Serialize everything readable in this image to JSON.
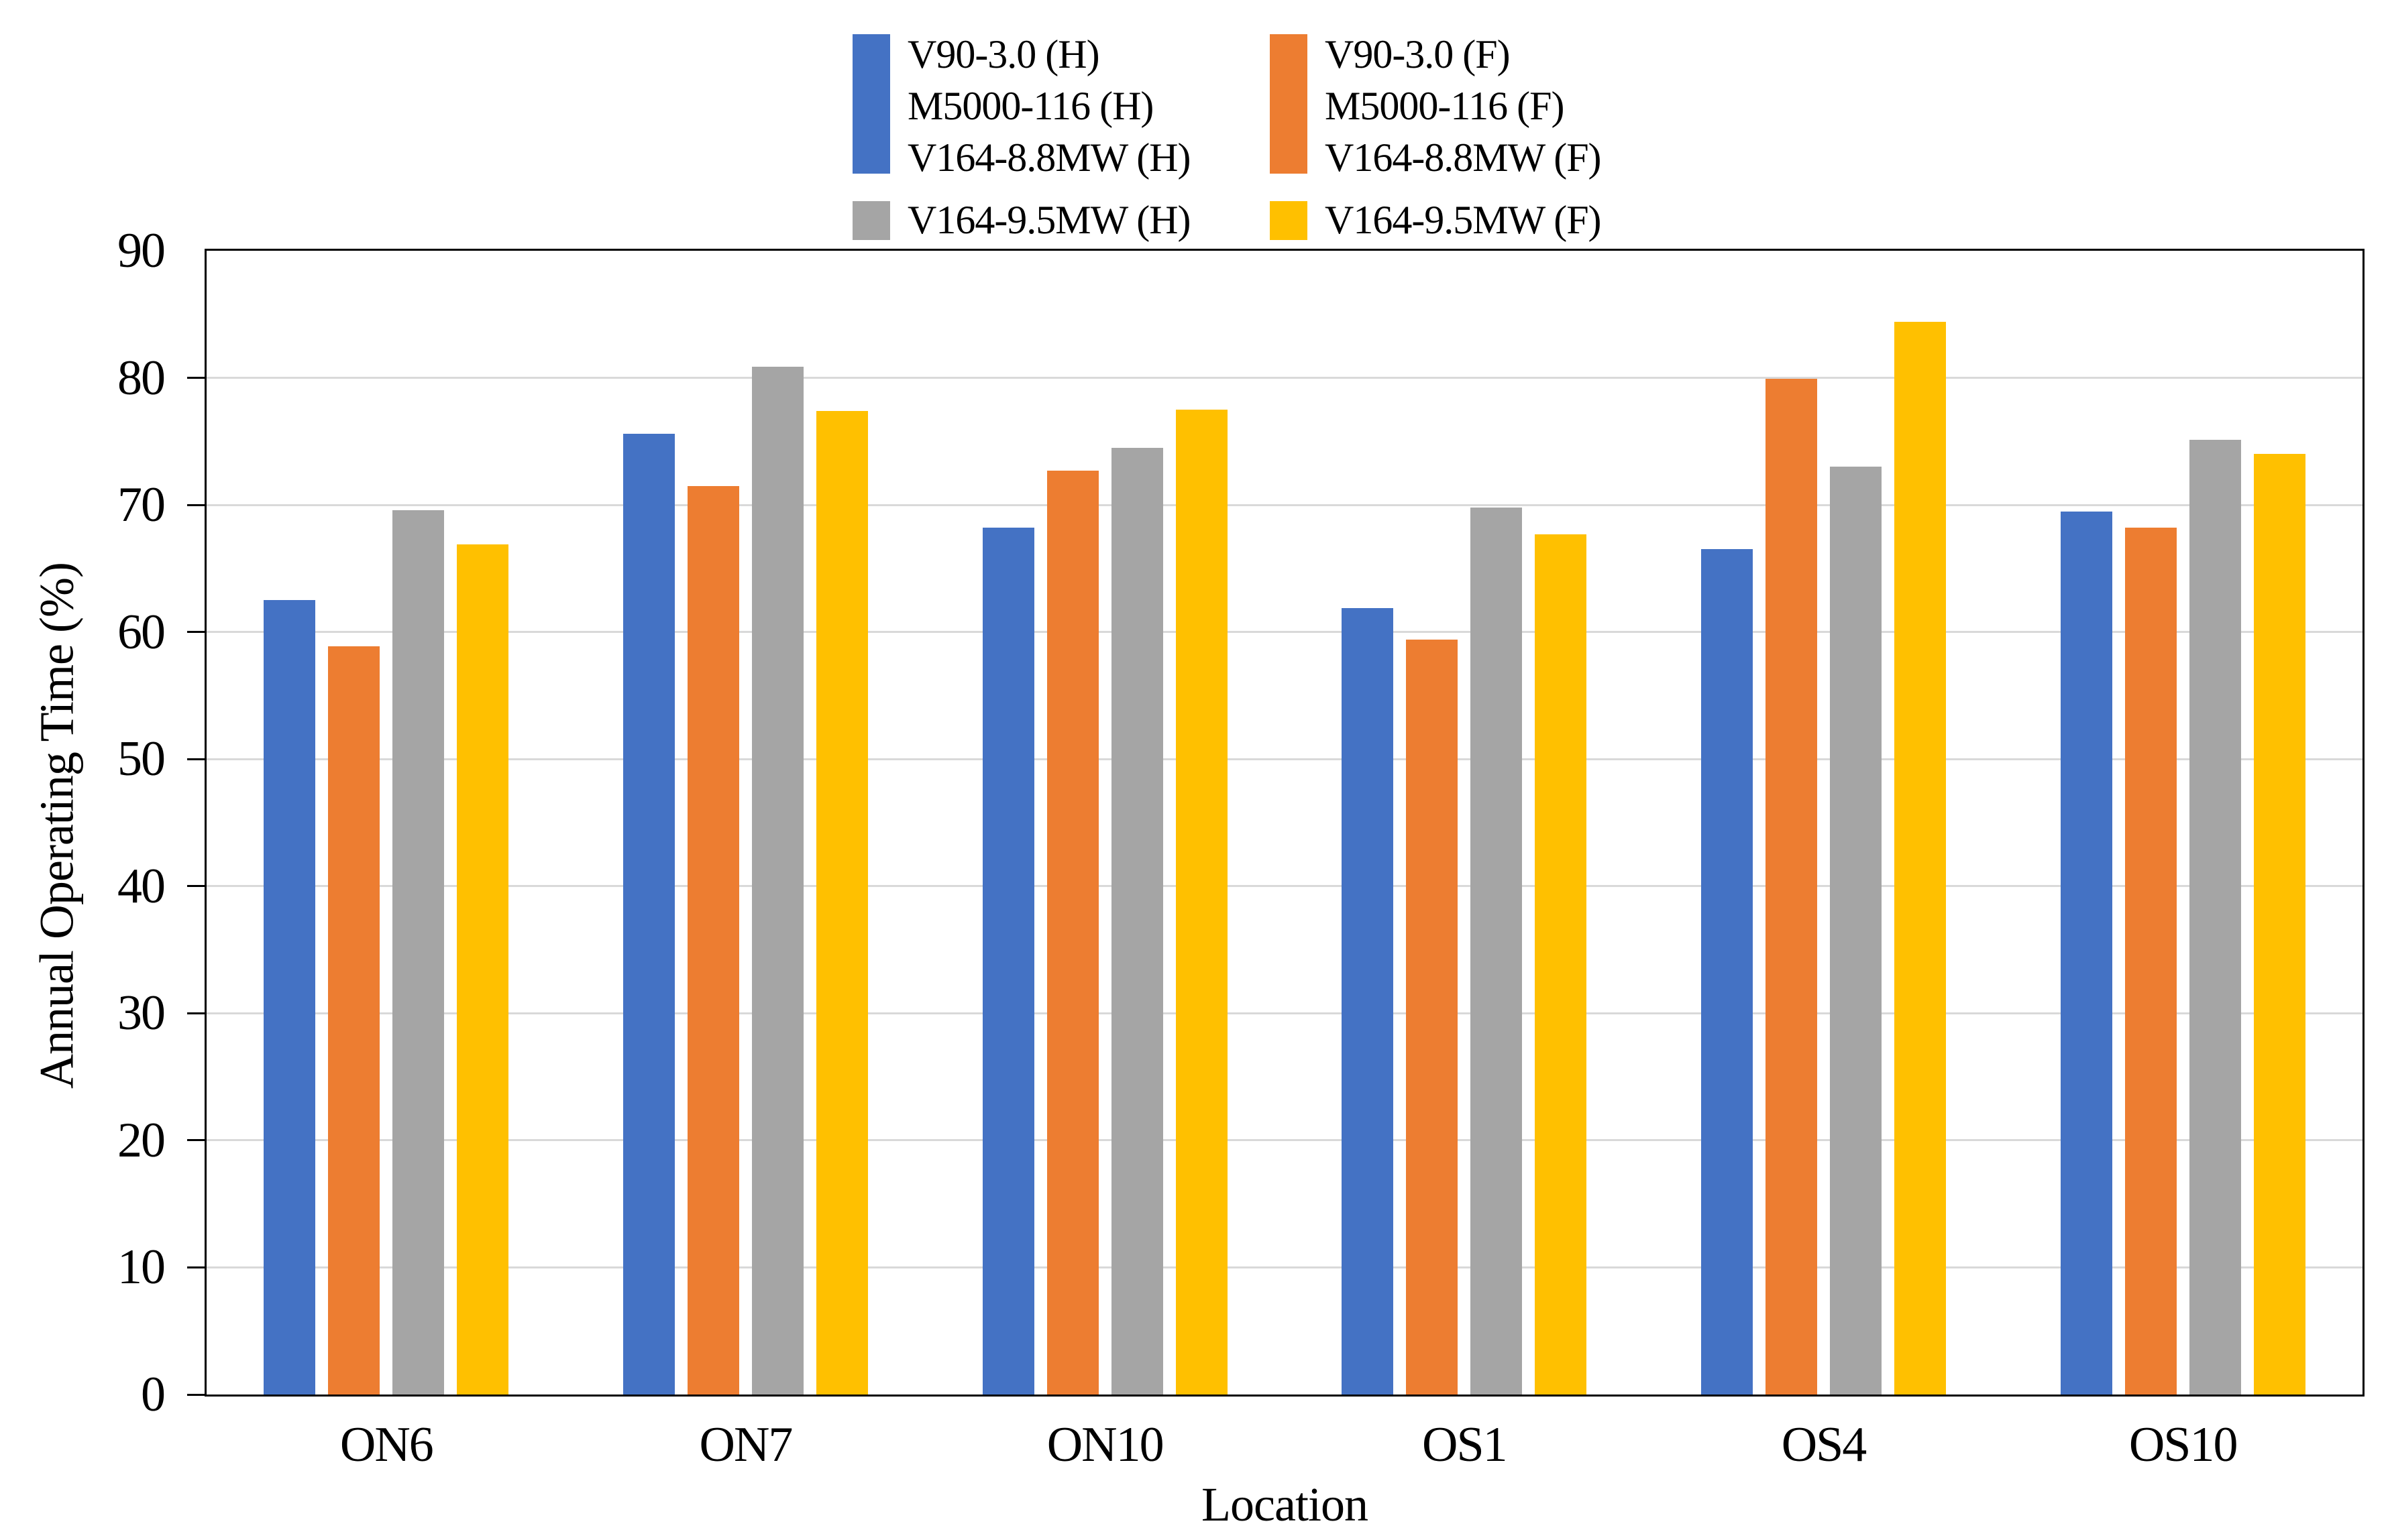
{
  "legend": {
    "columns": [
      {
        "tall_swatch_color": "#4472C4",
        "tall_labels": [
          "V90-3.0 (H)",
          "M5000-116 (H)",
          "V164-8.8MW (H)"
        ],
        "small_swatch_color": "#A5A5A5",
        "small_label": "V164-9.5MW (H)"
      },
      {
        "tall_swatch_color": "#ED7D31",
        "tall_labels": [
          "V90-3.0 (F)",
          "M5000-116 (F)",
          "V164-8.8MW (F)"
        ],
        "small_swatch_color": "#FFC000",
        "small_label": "V164-9.5MW (F)"
      }
    ]
  },
  "chart_data": {
    "type": "bar",
    "title": "",
    "xlabel": "Location",
    "ylabel": "Annual Operating Time (%)",
    "categories": [
      "ON6",
      "ON7",
      "ON10",
      "OS1",
      "OS4",
      "OS10"
    ],
    "series": [
      {
        "name": "V90-3.0 (H) / M5000-116 (H) / V164-8.8MW (H)",
        "color": "#4472C4",
        "values": [
          62.5,
          75.6,
          68.2,
          61.9,
          66.5,
          69.5
        ]
      },
      {
        "name": "V90-3.0 (F) / M5000-116 (F) / V164-8.8MW (F)",
        "color": "#ED7D31",
        "values": [
          58.9,
          71.5,
          72.7,
          59.4,
          79.9,
          68.2
        ]
      },
      {
        "name": "V164-9.5MW (H)",
        "color": "#A5A5A5",
        "values": [
          69.6,
          80.9,
          74.5,
          69.8,
          73.0,
          75.1
        ]
      },
      {
        "name": "V164-9.5MW (F)",
        "color": "#FFC000",
        "values": [
          66.9,
          77.4,
          77.5,
          67.7,
          84.4,
          74.0
        ]
      }
    ],
    "ylim": [
      0,
      90
    ],
    "ytick_step": 10,
    "yticks": [
      "0",
      "10",
      "20",
      "30",
      "40",
      "50",
      "60",
      "70",
      "80",
      "90"
    ],
    "grid": true,
    "gridline_color": "#D9D9D9",
    "axis_color": "#000000",
    "legend_position": "top"
  }
}
